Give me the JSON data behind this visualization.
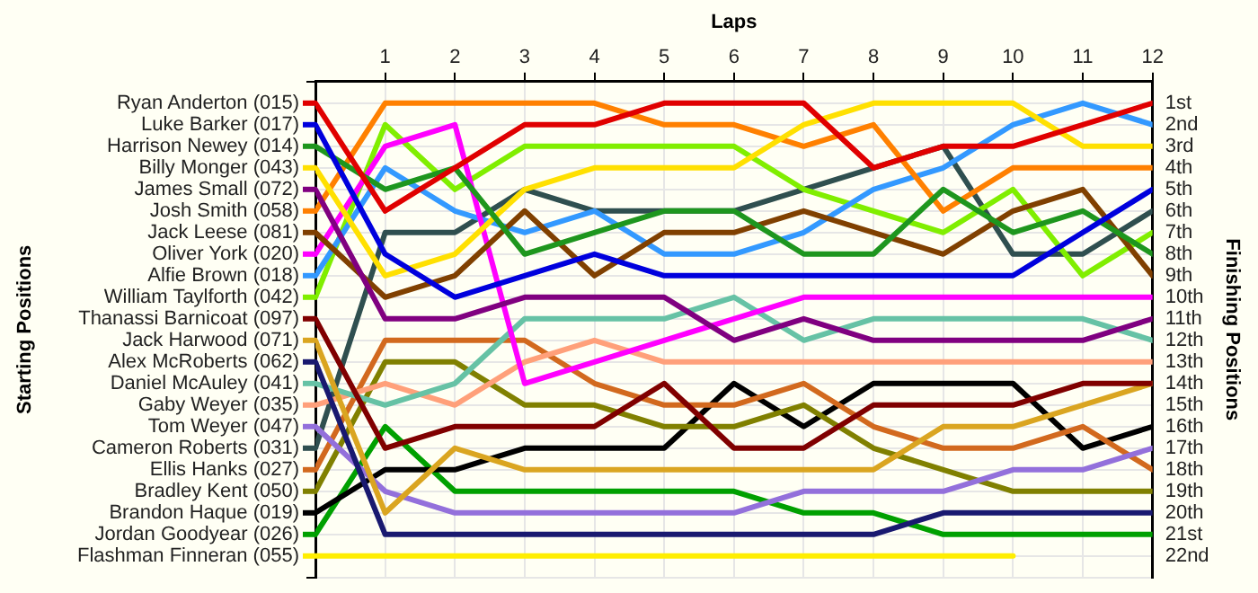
{
  "chart_data": {
    "type": "line",
    "xlabel": "Laps",
    "ylabel": "Finishing Positions",
    "annotations": [
      "Starting Positions"
    ],
    "x": [
      0,
      1,
      2,
      3,
      4,
      5,
      6,
      7,
      8,
      9,
      10,
      11,
      12
    ],
    "xlim": [
      0,
      12
    ],
    "xticks": [
      1,
      2,
      3,
      4,
      5,
      6,
      7,
      8,
      9,
      10,
      11,
      12
    ],
    "ylim": [
      23,
      0
    ],
    "yticks": [
      {
        "value": 0,
        "label": null
      },
      {
        "value": 1,
        "label": "1st"
      },
      {
        "value": 2,
        "label": "2nd"
      },
      {
        "value": 3,
        "label": "3rd"
      },
      {
        "value": 4,
        "label": "4th"
      },
      {
        "value": 5,
        "label": "5th"
      },
      {
        "value": 6,
        "label": "6th"
      },
      {
        "value": 7,
        "label": "7th"
      },
      {
        "value": 8,
        "label": "8th"
      },
      {
        "value": 9,
        "label": "9th"
      },
      {
        "value": 10,
        "label": "10th"
      },
      {
        "value": 11,
        "label": "11th"
      },
      {
        "value": 12,
        "label": "12th"
      },
      {
        "value": 13,
        "label": "13th"
      },
      {
        "value": 14,
        "label": "14th"
      },
      {
        "value": 15,
        "label": "15th"
      },
      {
        "value": 16,
        "label": "16th"
      },
      {
        "value": 17,
        "label": "17th"
      },
      {
        "value": 18,
        "label": "18th"
      },
      {
        "value": 19,
        "label": "19th"
      },
      {
        "value": 20,
        "label": "20th"
      },
      {
        "value": 21,
        "label": "21st"
      },
      {
        "value": 22,
        "label": "22nd"
      },
      {
        "value": 23,
        "label": null
      }
    ],
    "grid": true,
    "legend": "left",
    "marker": "none",
    "line_style": "solid",
    "series": [
      {
        "name": "Ryan Anderton (015)",
        "color": "#e00000",
        "values": [
          1,
          6,
          4,
          2,
          2,
          1,
          1,
          1,
          4,
          3,
          3,
          2,
          1
        ]
      },
      {
        "name": "Luke Barker (017)",
        "color": "#0000dd",
        "values": [
          2,
          8,
          10,
          9,
          8,
          9,
          9,
          9,
          9,
          9,
          9,
          7,
          5
        ]
      },
      {
        "name": "Harrison Newey (014)",
        "color": "#1e961e",
        "values": [
          3,
          5,
          4,
          8,
          7,
          6,
          6,
          8,
          8,
          5,
          7,
          6,
          8
        ]
      },
      {
        "name": "Billy Monger (043)",
        "color": "#ffe000",
        "values": [
          4,
          9,
          8,
          5,
          4,
          4,
          4,
          2,
          1,
          1,
          1,
          3,
          3
        ]
      },
      {
        "name": "James Small (072)",
        "color": "#800080",
        "values": [
          5,
          11,
          11,
          10,
          10,
          10,
          12,
          11,
          12,
          12,
          12,
          12,
          11
        ]
      },
      {
        "name": "Josh Smith (058)",
        "color": "#ff8000",
        "values": [
          6,
          1,
          1,
          1,
          1,
          2,
          2,
          3,
          2,
          6,
          4,
          4,
          4
        ]
      },
      {
        "name": "Jack Leese (081)",
        "color": "#804000",
        "values": [
          7,
          10,
          9,
          6,
          9,
          7,
          7,
          6,
          7,
          8,
          6,
          5,
          9
        ]
      },
      {
        "name": "Oliver York (020)",
        "color": "#ff00ff",
        "values": [
          8,
          3,
          2,
          14,
          13,
          12,
          11,
          10,
          10,
          10,
          10,
          10,
          10
        ]
      },
      {
        "name": "Alfie Brown (018)",
        "color": "#3399ff",
        "values": [
          9,
          4,
          6,
          7,
          6,
          8,
          8,
          7,
          5,
          4,
          2,
          1,
          2
        ]
      },
      {
        "name": "William Taylforth (042)",
        "color": "#80ee00",
        "values": [
          10,
          2,
          5,
          3,
          3,
          3,
          3,
          5,
          6,
          7,
          5,
          9,
          7
        ]
      },
      {
        "name": "Thanassi Barnicoat (097)",
        "color": "#800000",
        "values": [
          11,
          17,
          16,
          16,
          16,
          14,
          17,
          17,
          15,
          15,
          15,
          14,
          14
        ]
      },
      {
        "name": "Jack Harwood (071)",
        "color": "#daa520",
        "values": [
          12,
          20,
          17,
          18,
          18,
          18,
          18,
          18,
          18,
          16,
          16,
          15,
          14
        ]
      },
      {
        "name": "Alex McRoberts (062)",
        "color": "#191970",
        "values": [
          13,
          21,
          21,
          21,
          21,
          21,
          21,
          21,
          21,
          20,
          20,
          20,
          20
        ]
      },
      {
        "name": "Daniel McAuley (041)",
        "color": "#66c2a5",
        "values": [
          14,
          15,
          14,
          11,
          11,
          11,
          10,
          12,
          11,
          11,
          11,
          11,
          12
        ]
      },
      {
        "name": "Gaby Weyer (035)",
        "color": "#ffa07a",
        "values": [
          15,
          14,
          15,
          13,
          12,
          13,
          13,
          13,
          13,
          13,
          13,
          13,
          13
        ]
      },
      {
        "name": "Tom Weyer (047)",
        "color": "#9370db",
        "values": [
          16,
          19,
          20,
          20,
          20,
          20,
          20,
          19,
          19,
          19,
          18,
          18,
          17
        ]
      },
      {
        "name": "Cameron Roberts (031)",
        "color": "#2f4f4f",
        "values": [
          17,
          7,
          7,
          5,
          6,
          6,
          6,
          5,
          4,
          3,
          8,
          8,
          6
        ]
      },
      {
        "name": "Ellis Hanks (027)",
        "color": "#d2691e",
        "values": [
          18,
          12,
          12,
          12,
          14,
          15,
          15,
          14,
          16,
          17,
          17,
          16,
          18
        ]
      },
      {
        "name": "Bradley Kent (050)",
        "color": "#808000",
        "values": [
          19,
          13,
          13,
          15,
          15,
          16,
          16,
          15,
          17,
          18,
          19,
          19,
          19
        ]
      },
      {
        "name": "Brandon Haque (019)",
        "color": "#000000",
        "values": [
          20,
          18,
          18,
          17,
          17,
          17,
          14,
          16,
          14,
          14,
          14,
          17,
          16
        ]
      },
      {
        "name": "Jordan Goodyear (026)",
        "color": "#00a000",
        "values": [
          21,
          16,
          19,
          19,
          19,
          19,
          19,
          20,
          20,
          21,
          21,
          21,
          21
        ]
      },
      {
        "name": "Flashman Finneran (055)",
        "color": "#ffee00",
        "values": [
          22,
          22,
          22,
          22,
          22,
          22,
          22,
          22,
          22,
          22,
          22,
          null,
          null
        ]
      }
    ]
  }
}
